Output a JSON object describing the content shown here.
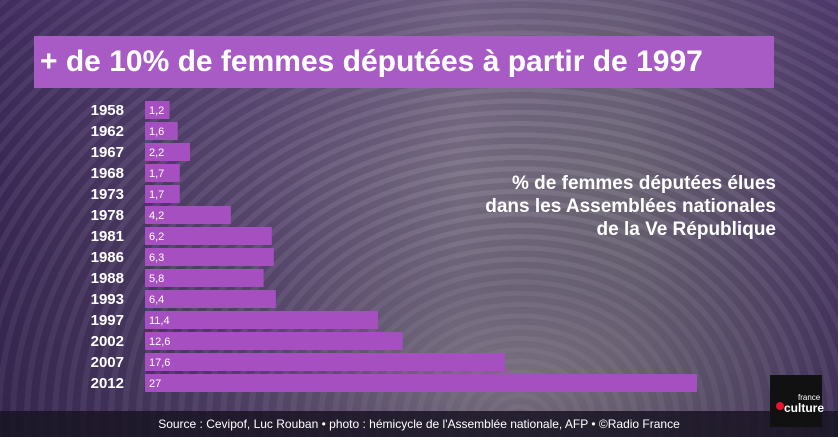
{
  "title": "+ de 10% de femmes députées à partir de 1997",
  "subtitle_lines": [
    "% de femmes députées élues",
    "dans les Assemblées nationales",
    "de la Ve République"
  ],
  "footer": {
    "source": "Source : Cevipof, Luc Rouban  •  photo : hémicycle de l'Assemblée nationale, AFP  •  ©Radio France"
  },
  "logo": {
    "small": "france",
    "main": "culture",
    "accent_color": "#e5142c"
  },
  "colors": {
    "title_background": "#a85bc4",
    "bar": "#a64fc0"
  },
  "chart_data": {
    "type": "bar",
    "orientation": "horizontal",
    "categories": [
      "1958",
      "1962",
      "1967",
      "1968",
      "1973",
      "1978",
      "1981",
      "1986",
      "1988",
      "1993",
      "1997",
      "2002",
      "2007",
      "2012"
    ],
    "values": [
      1.2,
      1.6,
      2.2,
      1.7,
      1.7,
      4.2,
      6.2,
      6.3,
      5.8,
      6.4,
      11.4,
      12.6,
      17.6,
      27
    ],
    "value_labels": [
      "1,2",
      "1,6",
      "2,2",
      "1,7",
      "1,7",
      "4,2",
      "6,2",
      "6,3",
      "5,8",
      "6,4",
      "11,4",
      "12,6",
      "17,6",
      "27"
    ],
    "xlim": [
      0,
      27
    ],
    "grid": false,
    "legend": "none"
  }
}
